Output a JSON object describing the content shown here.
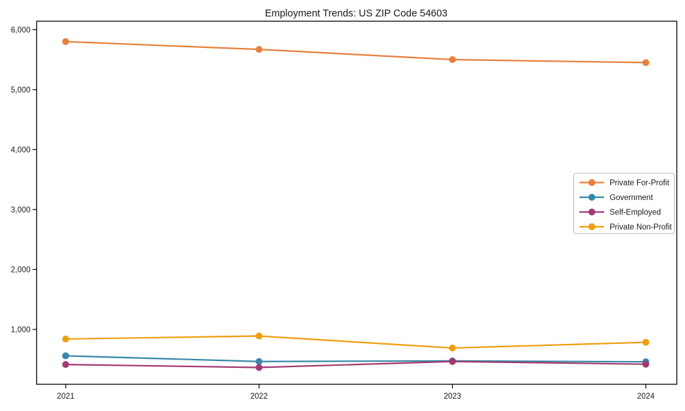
{
  "chart_data": {
    "type": "line",
    "title": "Employment Trends: US ZIP Code 54603",
    "xlabel": "",
    "ylabel": "",
    "x": [
      2021,
      2022,
      2023,
      2024
    ],
    "x_tick_labels": [
      "2021",
      "2022",
      "2023",
      "2024"
    ],
    "y_ticks": [
      1000,
      2000,
      3000,
      4000,
      5000,
      6000
    ],
    "y_tick_labels": [
      "1,000",
      "2,000",
      "3,000",
      "4,000",
      "5,000",
      "6,000"
    ],
    "xlim": [
      2020.85,
      2024.16
    ],
    "ylim": [
      85,
      6140
    ],
    "grid": false,
    "axis_color": "#000000",
    "text_color": "#1a1a1a",
    "marker": "circle",
    "legend": {
      "position": "center-right",
      "background": "#ffffff",
      "border_color": "#b7b7b7"
    },
    "series": [
      {
        "name": "Private For-Profit",
        "color": "#e6803e",
        "values": [
          5800,
          5670,
          5500,
          5450
        ]
      },
      {
        "name": "Government",
        "color": "#3787a8",
        "values": [
          560,
          465,
          475,
          460
        ]
      },
      {
        "name": "Self-Employed",
        "color": "#a13a71",
        "values": [
          415,
          365,
          465,
          420
        ]
      },
      {
        "name": "Private Non-Profit",
        "color": "#f09e10",
        "values": [
          840,
          890,
          690,
          785
        ]
      }
    ]
  }
}
